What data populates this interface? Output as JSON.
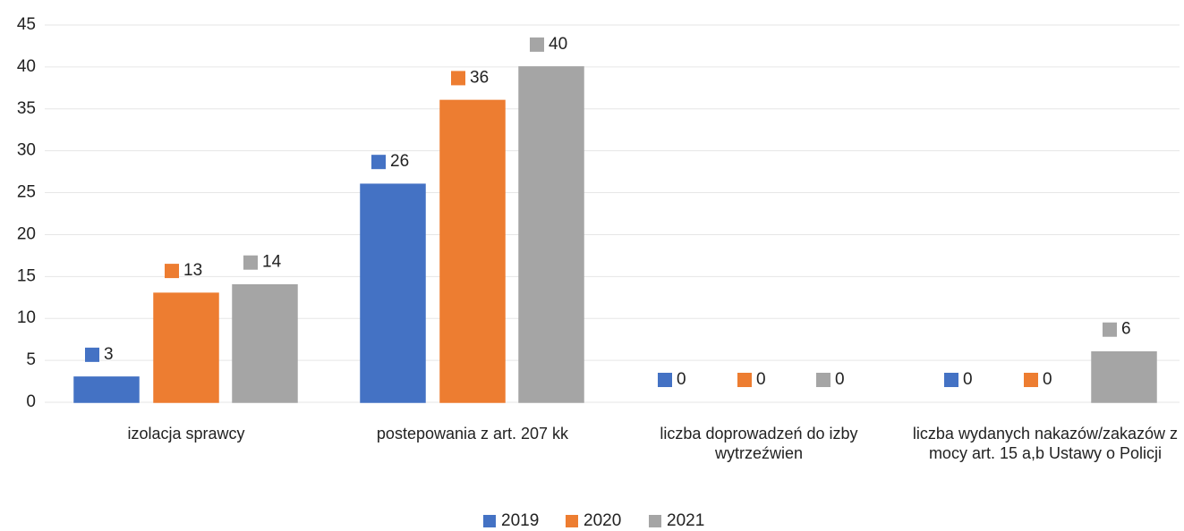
{
  "chart_data": {
    "type": "bar",
    "categories": [
      "izolacja sprawcy",
      "postepowania z art. 207 kk",
      "liczba doprowadzeń do izby wytrzeźwien",
      "liczba wydanych nakazów/zakazów z mocy art. 15 a,b Ustawy o Policji"
    ],
    "series": [
      {
        "name": "2019",
        "color": "#4472c4",
        "values": [
          3,
          26,
          0,
          0
        ]
      },
      {
        "name": "2020",
        "color": "#ed7d31",
        "values": [
          13,
          36,
          0,
          0
        ]
      },
      {
        "name": "2021",
        "color": "#a5a5a5",
        "values": [
          14,
          40,
          0,
          6
        ]
      }
    ],
    "ylim": [
      0,
      45
    ],
    "yticks": [
      0,
      5,
      10,
      15,
      20,
      25,
      30,
      35,
      40,
      45
    ],
    "grid": true,
    "legend": "bottom"
  }
}
